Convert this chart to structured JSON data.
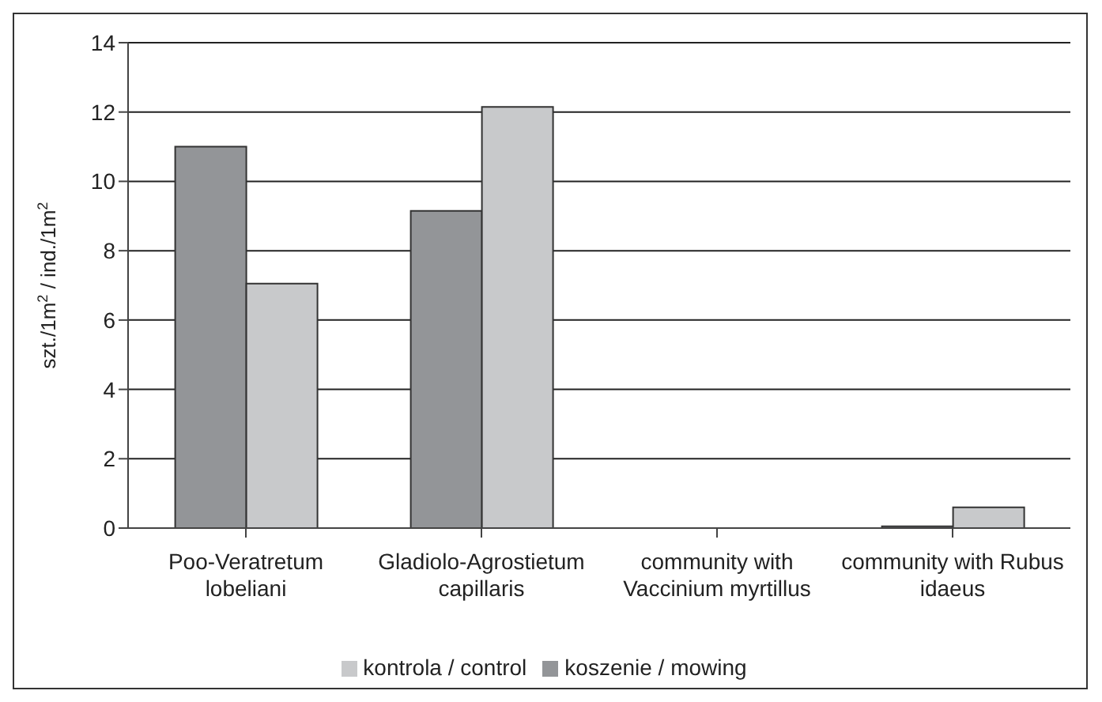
{
  "chart_data": {
    "type": "bar",
    "ylabel": "szt./1m$^{2}$ / ind./1m$^{2}$",
    "categories": [
      "Poo-Veratretum lobeliani",
      "Gladiolo-Agrostietum capillaris",
      "community with Vaccinium myrtillus",
      "community with Rubus idaeus"
    ],
    "series": [
      {
        "name": "koszenie / mowing",
        "color": "#939598",
        "values": [
          11.0,
          9.15,
          0,
          0.05
        ]
      },
      {
        "name": "kontrola / control",
        "color": "#c8c9cb",
        "values": [
          7.05,
          12.15,
          0,
          0.6
        ]
      }
    ],
    "ylim": [
      0,
      14
    ],
    "yticks": [
      0,
      2,
      4,
      6,
      8,
      10,
      12,
      14
    ],
    "grid": "y",
    "legend": "bottom"
  }
}
